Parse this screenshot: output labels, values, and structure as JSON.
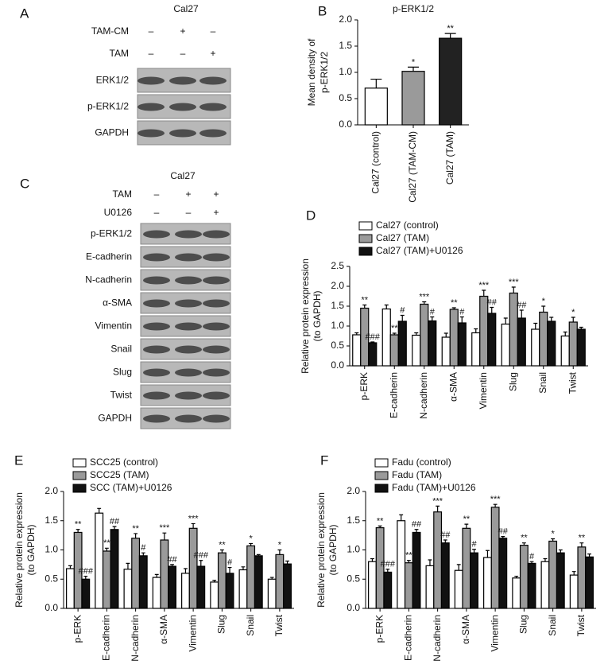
{
  "blots": [
    {
      "letter": "A",
      "title": "Cal27",
      "conditions": [
        {
          "name": "TAM-CM",
          "signs": [
            "–",
            "+",
            "–"
          ]
        },
        {
          "name": "TAM",
          "signs": [
            "–",
            "–",
            "+"
          ]
        }
      ],
      "rows": [
        "ERK1/2",
        "p-ERK1/2",
        "GAPDH"
      ]
    },
    {
      "letter": "C",
      "title": "Cal27",
      "conditions": [
        {
          "name": "TAM",
          "signs": [
            "–",
            "+",
            "+"
          ]
        },
        {
          "name": "U0126",
          "signs": [
            "–",
            "–",
            "+"
          ]
        }
      ],
      "rows": [
        "p-ERK1/2",
        "E-cadherin",
        "N-cadherin",
        "α-SMA",
        "Vimentin",
        "Snail",
        "Slug",
        "Twist",
        "GAPDH"
      ]
    }
  ],
  "chart_data": [
    {
      "type": "bar",
      "letter": "B",
      "title": "p-ERK1/2",
      "ylabel": [
        "Mean density of",
        "p-ERK1/2"
      ],
      "categories": [
        "Cal27 (control)",
        "Cal27 (TAM-CM)",
        "Cal27 (TAM)"
      ],
      "values": [
        0.7,
        1.02,
        1.65
      ],
      "errors": [
        0.17,
        0.08,
        0.09
      ],
      "colors": [
        "#ffffff",
        "#9a9a9a",
        "#222222"
      ],
      "annotations": [
        null,
        "*",
        "**"
      ],
      "ylim": [
        0,
        2.0
      ],
      "yticks": [
        {
          "value": 0,
          "label": "0.0"
        },
        0.5,
        {
          "value": 1,
          "label": "1.0"
        },
        1.5,
        {
          "value": 2,
          "label": "2.0"
        }
      ]
    },
    {
      "type": "grouped_bar",
      "letter": "D",
      "ylabel": [
        "Relative protein expression",
        "(to GAPDH)"
      ],
      "categories": [
        "p-ERK",
        "E-cadherin",
        "N-cadherin",
        "α-SMA",
        "Vimentin",
        "Slug",
        "Snail",
        "Twist"
      ],
      "legend": "upper left",
      "series": [
        {
          "name": "Cal27 (control)",
          "color": "#ffffff",
          "values": [
            0.78,
            1.43,
            0.77,
            0.72,
            0.83,
            1.05,
            0.92,
            0.75
          ],
          "errors": [
            0.05,
            0.1,
            0.06,
            0.1,
            0.1,
            0.15,
            0.15,
            0.1
          ],
          "annotations": [
            null,
            null,
            null,
            null,
            null,
            null,
            null,
            null
          ]
        },
        {
          "name": "Cal27 (TAM)",
          "color": "#9a9a9a",
          "values": [
            1.45,
            0.78,
            1.55,
            1.42,
            1.75,
            1.83,
            1.35,
            1.1
          ],
          "errors": [
            0.08,
            0.04,
            0.06,
            0.04,
            0.15,
            0.15,
            0.15,
            0.12
          ],
          "annotations": [
            "**",
            "**",
            "***",
            "**",
            "***",
            "***",
            "*",
            "*"
          ]
        },
        {
          "name": "Cal27 (TAM)+U0126",
          "color": "#111111",
          "values": [
            0.58,
            1.12,
            1.13,
            1.08,
            1.32,
            1.2,
            1.12,
            0.92
          ],
          "errors": [
            0.02,
            0.15,
            0.1,
            0.15,
            0.15,
            0.2,
            0.1,
            0.05
          ],
          "annotations": [
            "###",
            "#",
            "#",
            "#",
            "##",
            "##",
            null,
            null
          ]
        }
      ],
      "ylim": [
        0,
        2.5
      ],
      "yticks": [
        {
          "value": 0,
          "label": "0.0"
        },
        0.5,
        {
          "value": 1,
          "label": "1.0"
        },
        1.5,
        {
          "value": 2,
          "label": "2.0"
        },
        2.5
      ]
    },
    {
      "type": "grouped_bar",
      "letter": "E",
      "ylabel": [
        "Relative protein expression",
        "(to GAPDH)"
      ],
      "categories": [
        "p-ERK",
        "E-cadherin",
        "N-cadherin",
        "α-SMA",
        "Vimentin",
        "Slug",
        "Snail",
        "Twist"
      ],
      "legend": "upper left",
      "series": [
        {
          "name": "SCC25 (control)",
          "color": "#ffffff",
          "values": [
            0.68,
            1.63,
            0.67,
            0.53,
            0.6,
            0.45,
            0.66,
            0.5
          ],
          "errors": [
            0.05,
            0.08,
            0.1,
            0.05,
            0.08,
            0.03,
            0.05,
            0.03
          ],
          "annotations": [
            null,
            null,
            null,
            null,
            null,
            null,
            null,
            null
          ]
        },
        {
          "name": "SCC25 (TAM)",
          "color": "#9a9a9a",
          "values": [
            1.3,
            0.98,
            1.2,
            1.17,
            1.37,
            0.95,
            1.07,
            0.92
          ],
          "errors": [
            0.05,
            0.05,
            0.08,
            0.12,
            0.08,
            0.05,
            0.04,
            0.08
          ],
          "annotations": [
            "**",
            "**",
            "**",
            "***",
            "***",
            "**",
            "*",
            "*"
          ]
        },
        {
          "name": "SCC (TAM)+U0126",
          "color": "#111111",
          "values": [
            0.5,
            1.35,
            0.9,
            0.72,
            0.72,
            0.6,
            0.9,
            0.76
          ],
          "errors": [
            0.05,
            0.05,
            0.05,
            0.03,
            0.1,
            0.1,
            0.02,
            0.05
          ],
          "annotations": [
            "###",
            "##",
            "#",
            "##",
            "###",
            "#",
            null,
            null
          ]
        }
      ],
      "ylim": [
        0,
        2.0
      ],
      "yticks": [
        {
          "value": 0,
          "label": "0.0"
        },
        0.5,
        {
          "value": 1,
          "label": "1.0"
        },
        1.5,
        {
          "value": 2,
          "label": "2.0"
        }
      ]
    },
    {
      "type": "grouped_bar",
      "letter": "F",
      "ylabel": [
        "Relative protein expression",
        "(to GAPDH)"
      ],
      "categories": [
        "p-ERK",
        "E-cadherin",
        "N-cadherin",
        "α-SMA",
        "Vimentin",
        "Slug",
        "Snail",
        "Twist"
      ],
      "legend": "upper left",
      "series": [
        {
          "name": "Fadu (control)",
          "color": "#ffffff",
          "values": [
            0.8,
            1.5,
            0.73,
            0.65,
            0.87,
            0.52,
            0.8,
            0.57
          ],
          "errors": [
            0.05,
            0.1,
            0.1,
            0.1,
            0.12,
            0.03,
            0.05,
            0.06
          ],
          "annotations": [
            null,
            null,
            null,
            null,
            null,
            null,
            null,
            null
          ]
        },
        {
          "name": "Fadu (TAM)",
          "color": "#9a9a9a",
          "values": [
            1.38,
            0.78,
            1.65,
            1.37,
            1.73,
            1.08,
            1.15,
            1.05
          ],
          "errors": [
            0.03,
            0.04,
            0.1,
            0.07,
            0.05,
            0.04,
            0.04,
            0.07
          ],
          "annotations": [
            "**",
            "**",
            "***",
            "**",
            "***",
            "**",
            "*",
            "**"
          ]
        },
        {
          "name": "Fadu (TAM)+U0126",
          "color": "#111111",
          "values": [
            0.62,
            1.3,
            1.12,
            0.95,
            1.2,
            0.77,
            0.95,
            0.88
          ],
          "errors": [
            0.05,
            0.05,
            0.05,
            0.06,
            0.03,
            0.03,
            0.05,
            0.05
          ],
          "annotations": [
            "###",
            "##",
            "##",
            "#",
            "##",
            "#",
            null,
            null
          ]
        }
      ],
      "ylim": [
        0,
        2.0
      ],
      "yticks": [
        {
          "value": 0,
          "label": "0.0"
        },
        0.5,
        {
          "value": 1,
          "label": "1.0"
        },
        1.5,
        {
          "value": 2,
          "label": "2.0"
        }
      ]
    }
  ]
}
